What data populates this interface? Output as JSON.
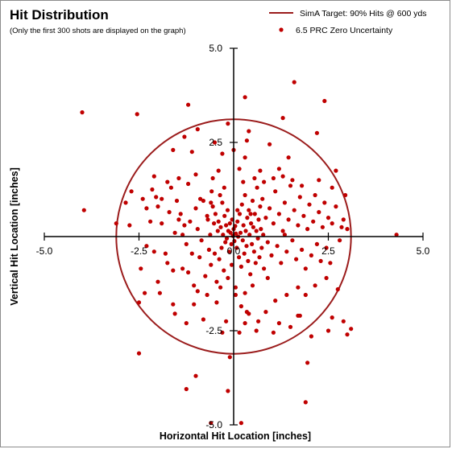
{
  "chart_data": {
    "type": "scatter",
    "title": "Hit Distribution",
    "subtitle": "(Only the first 300 shots are displayed on the graph)",
    "xlabel": "Horizontal Hit Location [inches]",
    "ylabel": "Vertical Hit Location [inches]",
    "xlim": [
      -5,
      5
    ],
    "ylim": [
      -5,
      5
    ],
    "x_ticks": [
      "-5.0",
      "-2.5",
      "0.0",
      "2.5",
      "5.0"
    ],
    "y_ticks": [
      "5.0",
      "2.5",
      "0.0",
      "-2.5",
      "-5.0"
    ],
    "grid": false,
    "legend_position": "top-right",
    "target": {
      "name": "SimA Target:  90% Hits @ 600 yds",
      "radius": 3.1,
      "color": "#9b1c1c"
    },
    "series": [
      {
        "name": "6.5 PRC Zero Uncertainty",
        "color": "#c00000",
        "points": [
          [
            -4.0,
            3.3
          ],
          [
            -3.95,
            0.7
          ],
          [
            -3.1,
            0.35
          ],
          [
            -2.55,
            3.25
          ],
          [
            -2.7,
            1.2
          ],
          [
            -2.45,
            -0.85
          ],
          [
            -2.3,
            -0.25
          ],
          [
            -2.2,
            0.4
          ],
          [
            -2.1,
            -0.4
          ],
          [
            -2.05,
            1.05
          ],
          [
            -2.0,
            0.8
          ],
          [
            -1.9,
            0.35
          ],
          [
            -1.8,
            -0.45
          ],
          [
            -1.75,
            -0.7
          ],
          [
            -1.7,
            0.65
          ],
          [
            -1.65,
            1.3
          ],
          [
            -1.6,
            -0.9
          ],
          [
            -1.55,
            0.1
          ],
          [
            -1.5,
            0.95
          ],
          [
            -1.45,
            0.45
          ],
          [
            -1.4,
            0.6
          ],
          [
            -1.35,
            -0.85
          ],
          [
            -1.3,
            0.3
          ],
          [
            -1.25,
            -0.2
          ],
          [
            -1.2,
            1.4
          ],
          [
            -1.15,
            0.4
          ],
          [
            -1.1,
            -0.45
          ],
          [
            -1.05,
            -1.3
          ],
          [
            -1.0,
            0.75
          ],
          [
            -0.95,
            0.2
          ],
          [
            -0.9,
            -0.55
          ],
          [
            -0.88,
            1.0
          ],
          [
            -0.85,
            -0.1
          ],
          [
            -0.8,
            0.95
          ],
          [
            -0.75,
            -1.05
          ],
          [
            -0.7,
            0.55
          ],
          [
            -0.68,
            0.45
          ],
          [
            -0.65,
            -0.35
          ],
          [
            -0.62,
            0.05
          ],
          [
            -0.6,
            -0.75
          ],
          [
            -0.58,
            1.2
          ],
          [
            -0.55,
            0.8
          ],
          [
            -0.52,
            0.35
          ],
          [
            -0.5,
            -0.45
          ],
          [
            -0.48,
            0.6
          ],
          [
            -0.45,
            -1.2
          ],
          [
            -0.42,
            0.15
          ],
          [
            -0.4,
            0.4
          ],
          [
            -0.38,
            -0.6
          ],
          [
            -0.36,
            1.1
          ],
          [
            -0.34,
            0.25
          ],
          [
            -0.32,
            -0.3
          ],
          [
            -0.3,
            0.9
          ],
          [
            -0.28,
            0.05
          ],
          [
            -0.26,
            -0.9
          ],
          [
            -0.24,
            0.55
          ],
          [
            -0.22,
            -0.15
          ],
          [
            -0.2,
            0.3
          ],
          [
            -0.18,
            -0.05
          ],
          [
            -0.16,
            0.7
          ],
          [
            -0.14,
            0.15
          ],
          [
            -0.12,
            -0.4
          ],
          [
            -0.1,
            0.35
          ],
          [
            -0.08,
            0.1
          ],
          [
            -0.06,
            -0.2
          ],
          [
            -0.04,
            0.45
          ],
          [
            -0.02,
            0.02
          ],
          [
            0.0,
            0.2
          ],
          [
            0.02,
            -0.12
          ],
          [
            0.04,
            0.28
          ],
          [
            0.06,
            0.08
          ],
          [
            0.08,
            -0.3
          ],
          [
            0.1,
            0.4
          ],
          [
            0.12,
            0.0
          ],
          [
            0.14,
            -0.55
          ],
          [
            0.16,
            0.6
          ],
          [
            0.18,
            0.1
          ],
          [
            0.2,
            -0.8
          ],
          [
            0.22,
            0.85
          ],
          [
            0.24,
            -0.1
          ],
          [
            0.26,
            0.3
          ],
          [
            0.28,
            -0.45
          ],
          [
            0.3,
            1.1
          ],
          [
            0.32,
            0.15
          ],
          [
            0.34,
            -0.25
          ],
          [
            0.36,
            0.5
          ],
          [
            0.38,
            -0.65
          ],
          [
            0.4,
            0.7
          ],
          [
            0.42,
            0.05
          ],
          [
            0.44,
            -1.0
          ],
          [
            0.46,
            0.35
          ],
          [
            0.48,
            -0.2
          ],
          [
            0.5,
            0.95
          ],
          [
            0.52,
            0.25
          ],
          [
            0.54,
            -0.4
          ],
          [
            0.56,
            0.6
          ],
          [
            0.58,
            -0.7
          ],
          [
            0.6,
            0.15
          ],
          [
            0.62,
            1.3
          ],
          [
            0.64,
            -0.05
          ],
          [
            0.66,
            0.45
          ],
          [
            0.68,
            -0.55
          ],
          [
            0.7,
            0.8
          ],
          [
            0.72,
            0.2
          ],
          [
            0.74,
            -0.3
          ],
          [
            0.76,
            1.0
          ],
          [
            0.78,
            0.05
          ],
          [
            0.8,
            -0.85
          ],
          [
            0.85,
            0.5
          ],
          [
            0.9,
            -0.15
          ],
          [
            0.95,
            0.75
          ],
          [
            1.0,
            -0.5
          ],
          [
            1.05,
            0.35
          ],
          [
            1.1,
            1.2
          ],
          [
            1.15,
            -0.25
          ],
          [
            1.2,
            0.6
          ],
          [
            1.25,
            -0.7
          ],
          [
            1.3,
            0.15
          ],
          [
            1.35,
            0.9
          ],
          [
            1.4,
            -0.4
          ],
          [
            1.45,
            0.45
          ],
          [
            1.5,
            1.35
          ],
          [
            1.55,
            -0.1
          ],
          [
            1.6,
            0.7
          ],
          [
            1.65,
            -0.6
          ],
          [
            1.7,
            0.3
          ],
          [
            1.75,
            1.05
          ],
          [
            1.8,
            -0.35
          ],
          [
            1.85,
            0.55
          ],
          [
            1.9,
            -0.85
          ],
          [
            1.95,
            0.2
          ],
          [
            2.0,
            0.85
          ],
          [
            2.05,
            -0.5
          ],
          [
            2.1,
            0.4
          ],
          [
            2.15,
            1.1
          ],
          [
            2.2,
            -0.2
          ],
          [
            2.25,
            0.65
          ],
          [
            2.3,
            -0.65
          ],
          [
            2.35,
            0.25
          ],
          [
            2.4,
            0.9
          ],
          [
            2.45,
            -0.3
          ],
          [
            2.5,
            0.5
          ],
          [
            2.55,
            -0.7
          ],
          [
            2.6,
            0.35
          ],
          [
            2.7,
            0.8
          ],
          [
            2.8,
            -0.1
          ],
          [
            2.85,
            0.25
          ],
          [
            2.9,
            0.45
          ],
          [
            3.0,
            0.2
          ],
          [
            -1.9,
            1.0
          ],
          [
            -2.3,
            0.75
          ],
          [
            -1.2,
            -0.95
          ],
          [
            -0.95,
            -1.45
          ],
          [
            -0.7,
            -1.55
          ],
          [
            -0.55,
            1.55
          ],
          [
            -0.35,
            -1.35
          ],
          [
            -0.15,
            -1.1
          ],
          [
            0.05,
            -1.35
          ],
          [
            0.3,
            -1.5
          ],
          [
            0.55,
            1.55
          ],
          [
            0.8,
            1.45
          ],
          [
            1.05,
            1.55
          ],
          [
            1.3,
            1.6
          ],
          [
            1.55,
            1.5
          ],
          [
            1.8,
            1.35
          ],
          [
            -1.45,
            1.55
          ],
          [
            -1.75,
            1.45
          ],
          [
            -2.15,
            1.25
          ],
          [
            -2.4,
            1.0
          ],
          [
            -1.0,
            1.65
          ],
          [
            -0.4,
            1.75
          ],
          [
            0.15,
            1.8
          ],
          [
            0.7,
            1.75
          ],
          [
            1.2,
            1.8
          ],
          [
            -0.3,
            2.2
          ],
          [
            0.3,
            2.1
          ],
          [
            -0.5,
            2.5
          ],
          [
            0.35,
            2.55
          ],
          [
            -1.1,
            2.25
          ],
          [
            -1.6,
            2.3
          ],
          [
            0.95,
            2.45
          ],
          [
            1.45,
            2.1
          ],
          [
            2.25,
            1.5
          ],
          [
            2.6,
            1.3
          ],
          [
            -1.3,
            2.65
          ],
          [
            -0.95,
            2.85
          ],
          [
            0.0,
            2.3
          ],
          [
            -0.15,
            3.0
          ],
          [
            -2.35,
            -1.5
          ],
          [
            -2.5,
            -1.75
          ],
          [
            -1.95,
            -1.5
          ],
          [
            -1.6,
            -1.8
          ],
          [
            -1.05,
            -1.8
          ],
          [
            -0.45,
            -1.75
          ],
          [
            0.2,
            -1.85
          ],
          [
            0.4,
            -2.05
          ],
          [
            0.65,
            -2.25
          ],
          [
            0.85,
            -2.0
          ],
          [
            1.1,
            -1.7
          ],
          [
            1.4,
            -1.55
          ],
          [
            1.7,
            -1.35
          ],
          [
            1.9,
            -1.55
          ],
          [
            2.15,
            -1.3
          ],
          [
            2.45,
            -1.1
          ],
          [
            -1.55,
            -2.05
          ],
          [
            -1.25,
            -2.3
          ],
          [
            -0.2,
            -2.25
          ],
          [
            0.3,
            -2.3
          ],
          [
            0.15,
            -2.55
          ],
          [
            0.6,
            -2.5
          ],
          [
            1.2,
            -2.3
          ],
          [
            1.5,
            -2.4
          ],
          [
            1.75,
            -2.1
          ],
          [
            -2.0,
            -1.2
          ],
          [
            2.6,
            -2.15
          ],
          [
            2.9,
            -2.25
          ],
          [
            2.5,
            -2.5
          ],
          [
            3.0,
            -2.6
          ],
          [
            -2.5,
            -3.1
          ],
          [
            -0.3,
            -2.55
          ],
          [
            1.7,
            -2.1
          ],
          [
            2.05,
            -2.65
          ],
          [
            1.05,
            -2.55
          ],
          [
            -0.1,
            -3.2
          ],
          [
            4.3,
            0.05
          ],
          [
            3.1,
            -2.45
          ],
          [
            2.75,
            -1.4
          ],
          [
            -1.2,
            3.5
          ],
          [
            0.3,
            3.7
          ],
          [
            1.6,
            4.1
          ],
          [
            2.4,
            3.6
          ],
          [
            2.2,
            2.75
          ],
          [
            1.3,
            3.15
          ],
          [
            0.4,
            2.8
          ],
          [
            -1.0,
            -3.7
          ],
          [
            -1.25,
            -4.05
          ],
          [
            1.95,
            -3.35
          ],
          [
            1.9,
            -4.4
          ],
          [
            -0.15,
            -4.1
          ],
          [
            0.2,
            -4.95
          ],
          [
            -0.6,
            -4.95
          ],
          [
            0.35,
            -2.0
          ],
          [
            -0.8,
            -2.2
          ],
          [
            0.05,
            -1.55
          ],
          [
            -2.75,
            0.3
          ],
          [
            -2.85,
            0.9
          ],
          [
            2.95,
            1.1
          ],
          [
            2.7,
            1.75
          ],
          [
            -2.1,
            1.6
          ],
          [
            0.45,
            0.6
          ],
          [
            -0.6,
            0.9
          ],
          [
            0.9,
            -1.1
          ],
          [
            -0.25,
            1.3
          ],
          [
            0.5,
            -1.3
          ],
          [
            1.35,
            0.05
          ],
          [
            -1.35,
            0.05
          ],
          [
            0.1,
            0.7
          ],
          [
            -0.05,
            -0.75
          ],
          [
            0.25,
            1.45
          ]
        ]
      }
    ]
  }
}
